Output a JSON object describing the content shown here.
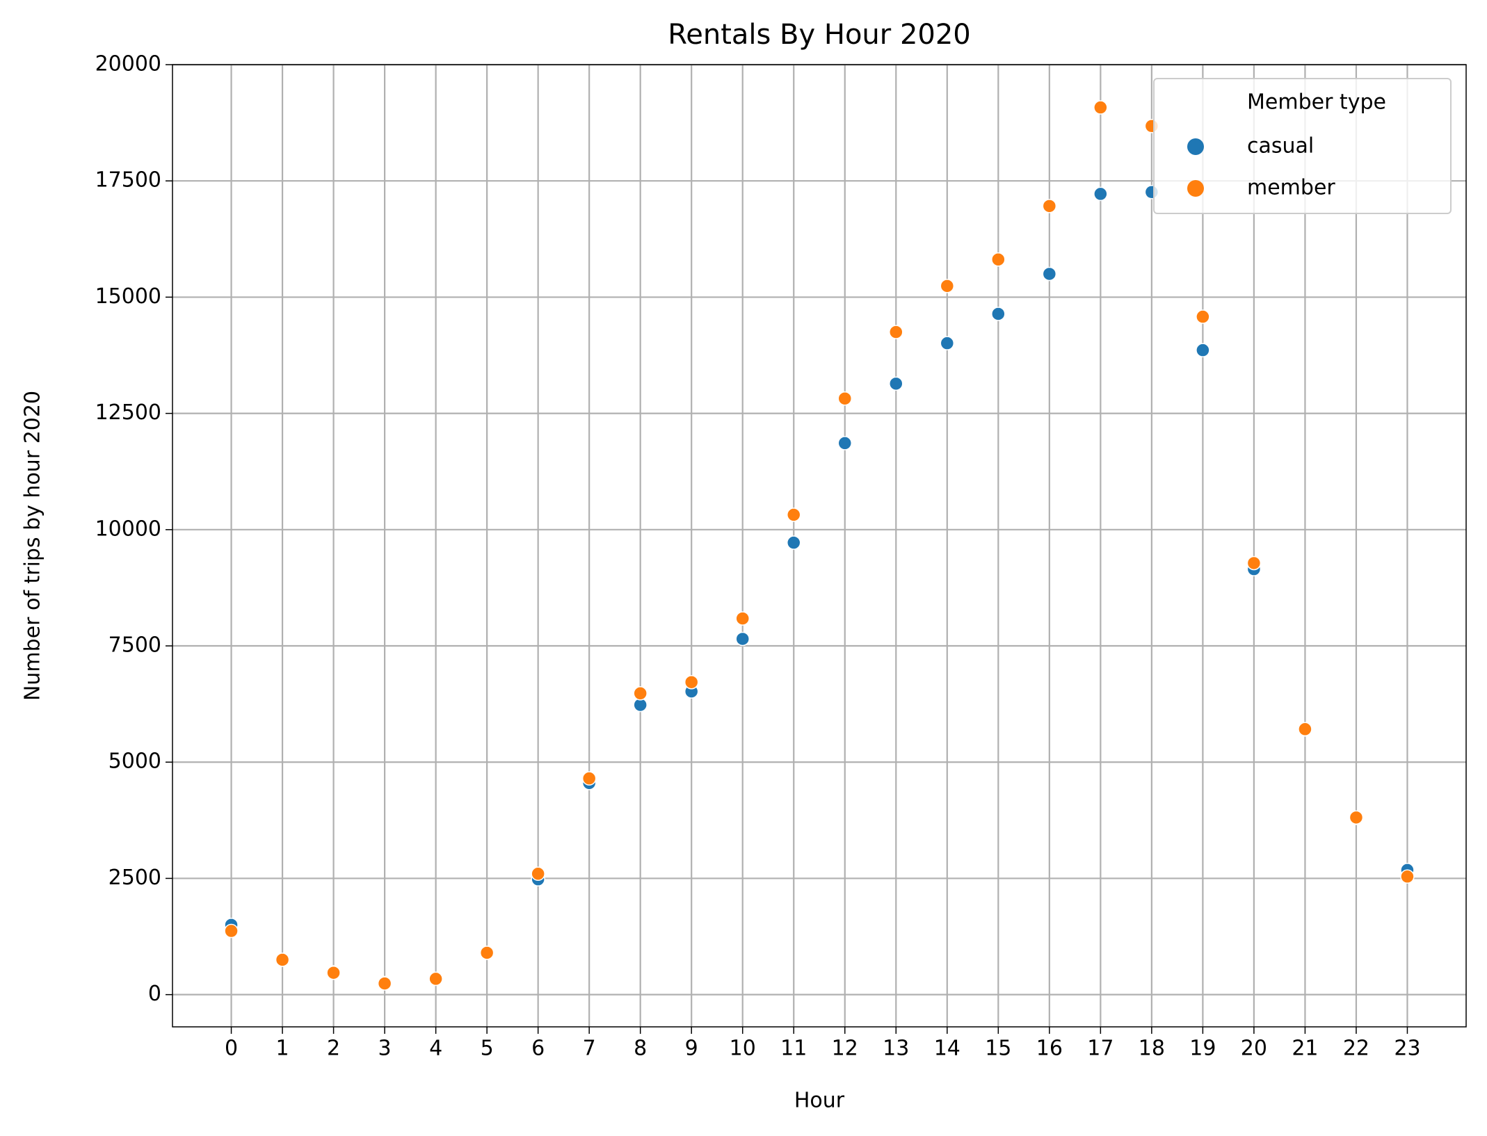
{
  "chart_data": {
    "type": "scatter",
    "title": "Rentals By Hour 2020",
    "x_label": "Hour",
    "y_label": "Number of trips by hour 2020",
    "x": [
      0,
      1,
      2,
      3,
      4,
      5,
      6,
      7,
      8,
      9,
      10,
      11,
      12,
      13,
      14,
      15,
      16,
      17,
      18,
      19,
      20,
      21,
      22,
      23
    ],
    "series": [
      {
        "name": "casual",
        "color": "#1f77b4",
        "values": [
          1500,
          750,
          480,
          250,
          340,
          900,
          2480,
          4550,
          6230,
          6520,
          7650,
          9720,
          11860,
          13140,
          14010,
          14640,
          15500,
          17220,
          17260,
          13860,
          9150,
          5700,
          3800,
          2680
        ]
      },
      {
        "name": "member",
        "color": "#ff7f0e",
        "values": [
          1370,
          750,
          470,
          240,
          340,
          900,
          2600,
          4650,
          6480,
          6720,
          8090,
          10320,
          12820,
          14250,
          15240,
          15810,
          16960,
          19080,
          18680,
          14580,
          9280,
          5710,
          3810,
          2540
        ]
      }
    ],
    "legend_title": "Member type",
    "legend": "upper right",
    "xlim": [
      -1.15,
      24.15
    ],
    "xticks": [
      0,
      1,
      2,
      3,
      4,
      5,
      6,
      7,
      8,
      9,
      10,
      11,
      12,
      13,
      14,
      15,
      16,
      17,
      18,
      19,
      20,
      21,
      22,
      23
    ],
    "ylim": [
      -693,
      20000
    ],
    "yticks": [
      0,
      2500,
      5000,
      7500,
      10000,
      12500,
      15000,
      17500,
      20000
    ],
    "grid": true
  }
}
